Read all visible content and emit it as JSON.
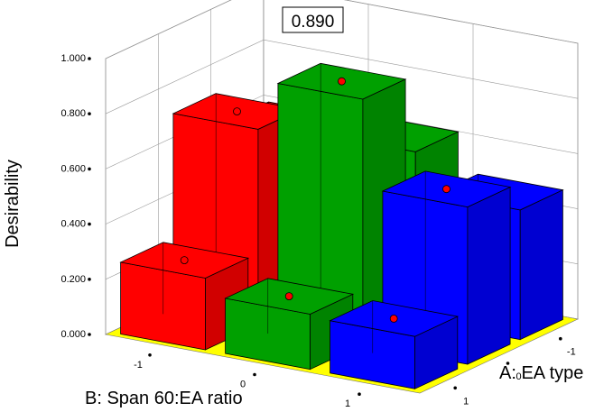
{
  "chart_data": {
    "type": "bar3d",
    "zlabel": "Desirability",
    "xlabel": "B: Span 60:EA ratio",
    "ylabel": "A: EA type",
    "z_ticks": [
      "0.000",
      "0.200",
      "0.400",
      "0.600",
      "0.800",
      "1.000"
    ],
    "zlim": [
      0,
      1
    ],
    "b_levels": [
      -1,
      0,
      1
    ],
    "a_levels": [
      -1,
      0,
      1
    ],
    "b_tick_labels": [
      "-1",
      "0",
      "1"
    ],
    "a_tick_labels": [
      "-1",
      "0",
      "1"
    ],
    "highlight_value": "0.890",
    "bars": [
      {
        "a": 1,
        "b": -1,
        "value": 0.26,
        "color": "#ff0000",
        "point": "hollow"
      },
      {
        "a": 1,
        "b": 0,
        "value": 0.2,
        "color": "#00a000",
        "point": "red"
      },
      {
        "a": 1,
        "b": 1,
        "value": 0.19,
        "color": "#0000ff",
        "point": "red"
      },
      {
        "a": 0,
        "b": -1,
        "value": 0.71,
        "color": "#ff0000",
        "point": "hollow"
      },
      {
        "a": 0,
        "b": 0,
        "value": 0.89,
        "color": "#00a000",
        "point": "red"
      },
      {
        "a": 0,
        "b": 1,
        "value": 0.57,
        "color": "#0000ff",
        "point": "red"
      },
      {
        "a": -1,
        "b": -1,
        "value": 0.59,
        "color": "#ff0000",
        "point": "hollow"
      },
      {
        "a": -1,
        "b": 0,
        "value": 0.61,
        "color": "#00a000",
        "point": "red"
      },
      {
        "a": -1,
        "b": 1,
        "value": 0.47,
        "color": "#0000ff",
        "point": "red"
      }
    ],
    "floor_color": "#ffff00",
    "grid": true
  }
}
